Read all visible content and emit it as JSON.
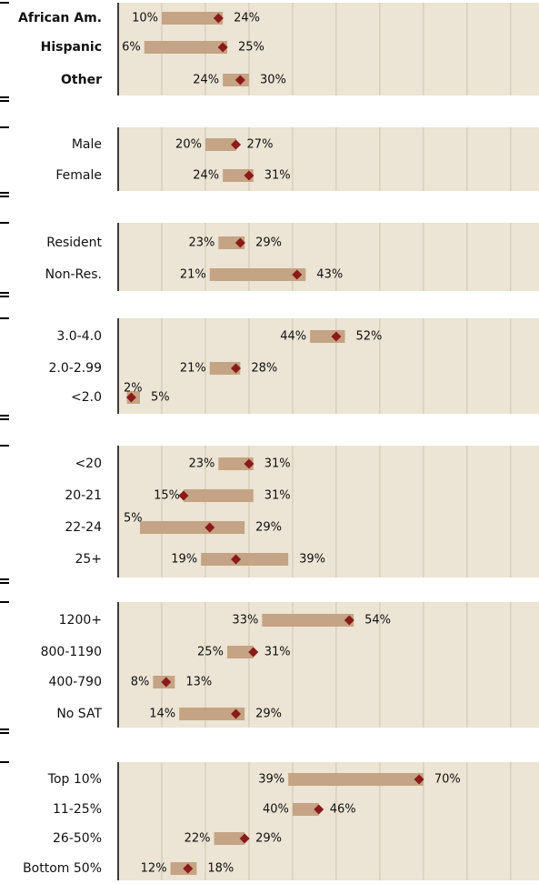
{
  "chart_data": [
    {
      "type": "range",
      "categories": [
        "African Am.",
        "Hispanic",
        "Other"
      ],
      "low": [
        10,
        6,
        24
      ],
      "low_labels": [
        "10%",
        "6%",
        "24%"
      ],
      "high": [
        24,
        25,
        30
      ],
      "high_labels": [
        "24%",
        "25%",
        "30%"
      ],
      "marker": [
        23,
        24,
        28
      ],
      "xlim": [
        0,
        96.5
      ],
      "xticks": [
        0,
        10,
        20,
        30,
        40,
        50,
        60,
        70,
        80,
        90
      ],
      "color": "#c4a484",
      "marker_color": "#8b1a1a"
    },
    {
      "type": "range",
      "categories": [
        "Male",
        "Female"
      ],
      "low": [
        20,
        24
      ],
      "low_labels": [
        "20%",
        "24%"
      ],
      "high": [
        27,
        31
      ],
      "high_labels": [
        "27%",
        "31%"
      ],
      "marker": [
        27,
        30
      ],
      "xlim": [
        0,
        96.5
      ],
      "xticks": [
        0,
        10,
        20,
        30,
        40,
        50,
        60,
        70,
        80,
        90
      ],
      "color": "#c4a484",
      "marker_color": "#8b1a1a"
    },
    {
      "type": "range",
      "categories": [
        "Resident",
        "Non-Res."
      ],
      "low": [
        23,
        21
      ],
      "low_labels": [
        "23%",
        "21%"
      ],
      "high": [
        29,
        43
      ],
      "high_labels": [
        "29%",
        "43%"
      ],
      "marker": [
        28,
        41
      ],
      "xlim": [
        0,
        96.5
      ],
      "xticks": [
        0,
        10,
        20,
        30,
        40,
        50,
        60,
        70,
        80,
        90
      ],
      "color": "#c4a484",
      "marker_color": "#8b1a1a"
    },
    {
      "type": "range",
      "categories": [
        "3.0-4.0",
        "2.0-2.99",
        "<2.0"
      ],
      "low": [
        44,
        21,
        2
      ],
      "low_labels": [
        "44%",
        "21%",
        "2%"
      ],
      "high": [
        52,
        28,
        5
      ],
      "high_labels": [
        "52%",
        "28%",
        "5%"
      ],
      "marker": [
        50,
        27,
        3
      ],
      "xlim": [
        0,
        96.5
      ],
      "xticks": [
        0,
        10,
        20,
        30,
        40,
        50,
        60,
        70,
        80,
        90
      ],
      "color": "#c4a484",
      "marker_color": "#8b1a1a"
    },
    {
      "type": "range",
      "categories": [
        "<20",
        "20-21",
        "22-24",
        "25+"
      ],
      "low": [
        23,
        15,
        5,
        19
      ],
      "low_labels": [
        "23%",
        "15%",
        "5%",
        "19%"
      ],
      "high": [
        31,
        31,
        29,
        39
      ],
      "high_labels": [
        "31%",
        "31%",
        "29%",
        "39%"
      ],
      "marker": [
        30,
        15,
        21,
        27
      ],
      "xlim": [
        0,
        96.5
      ],
      "xticks": [
        0,
        10,
        20,
        30,
        40,
        50,
        60,
        70,
        80,
        90
      ],
      "color": "#c4a484",
      "marker_color": "#8b1a1a"
    },
    {
      "type": "range",
      "categories": [
        "1200+",
        "800-1190",
        "400-790",
        "No SAT"
      ],
      "low": [
        33,
        25,
        8,
        14
      ],
      "low_labels": [
        "33%",
        "25%",
        "8%",
        "14%"
      ],
      "high": [
        54,
        31,
        13,
        29
      ],
      "high_labels": [
        "54%",
        "31%",
        "13%",
        "29%"
      ],
      "marker": [
        53,
        31,
        11,
        27
      ],
      "xlim": [
        0,
        96.5
      ],
      "xticks": [
        0,
        10,
        20,
        30,
        40,
        50,
        60,
        70,
        80,
        90
      ],
      "color": "#c4a484",
      "marker_color": "#8b1a1a"
    },
    {
      "type": "range",
      "categories": [
        "Top 10%",
        "11-25%",
        "26-50%",
        "Bottom 50%"
      ],
      "low": [
        39,
        40,
        22,
        12
      ],
      "low_labels": [
        "39%",
        "40%",
        "22%",
        "12%"
      ],
      "high": [
        70,
        46,
        29,
        18
      ],
      "high_labels": [
        "70%",
        "46%",
        "29%",
        "18%"
      ],
      "marker": [
        69,
        46,
        29,
        16
      ],
      "xlim": [
        0,
        96.5
      ],
      "xticks": [
        0,
        10,
        20,
        30,
        40,
        50,
        60,
        70,
        80,
        90
      ],
      "color": "#c4a484",
      "marker_color": "#8b1a1a"
    }
  ]
}
